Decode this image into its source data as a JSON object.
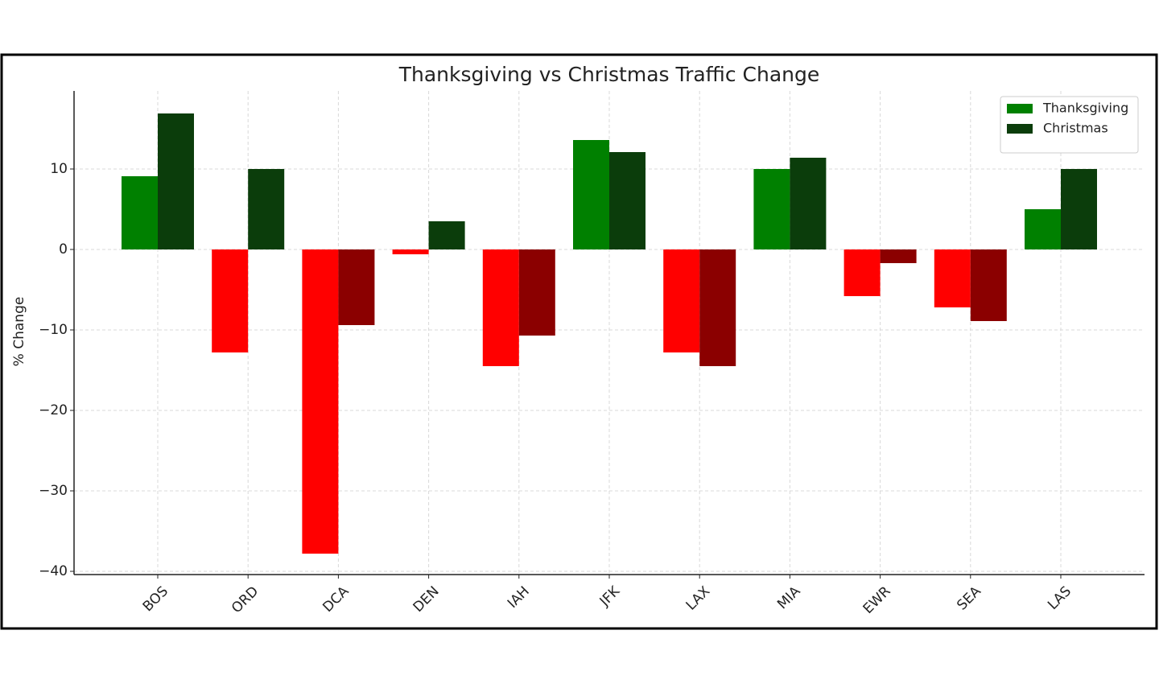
{
  "chart_data": {
    "type": "bar",
    "title": "Thanksgiving vs Christmas Traffic Change",
    "y_label": "% Change",
    "categories": [
      "BOS",
      "ORD",
      "DCA",
      "DEN",
      "IAH",
      "JFK",
      "LAX",
      "MIA",
      "EWR",
      "SEA",
      "LAS"
    ],
    "series": [
      {
        "name": "Thanksgiving",
        "color": "#008000",
        "negative_color": "#ff0000",
        "values": [
          9.1,
          -12.8,
          -37.8,
          -0.6,
          -14.5,
          13.6,
          -12.8,
          10.0,
          -5.8,
          -7.2,
          5.0
        ]
      },
      {
        "name": "Christmas",
        "color": "#0b3d0b",
        "negative_color": "#8b0000",
        "values": [
          16.9,
          10.0,
          -9.4,
          3.5,
          -10.7,
          12.1,
          -14.5,
          11.4,
          -1.7,
          -8.9,
          10.0
        ]
      }
    ],
    "ylim": [
      -40.4,
      19.7
    ],
    "yticks": [
      {
        "value": -40,
        "label": "−40"
      },
      {
        "value": -30,
        "label": "−30"
      },
      {
        "value": -20,
        "label": "−20"
      },
      {
        "value": -10,
        "label": "−10"
      },
      0,
      10
    ],
    "grid": true,
    "legend": "upper right"
  }
}
